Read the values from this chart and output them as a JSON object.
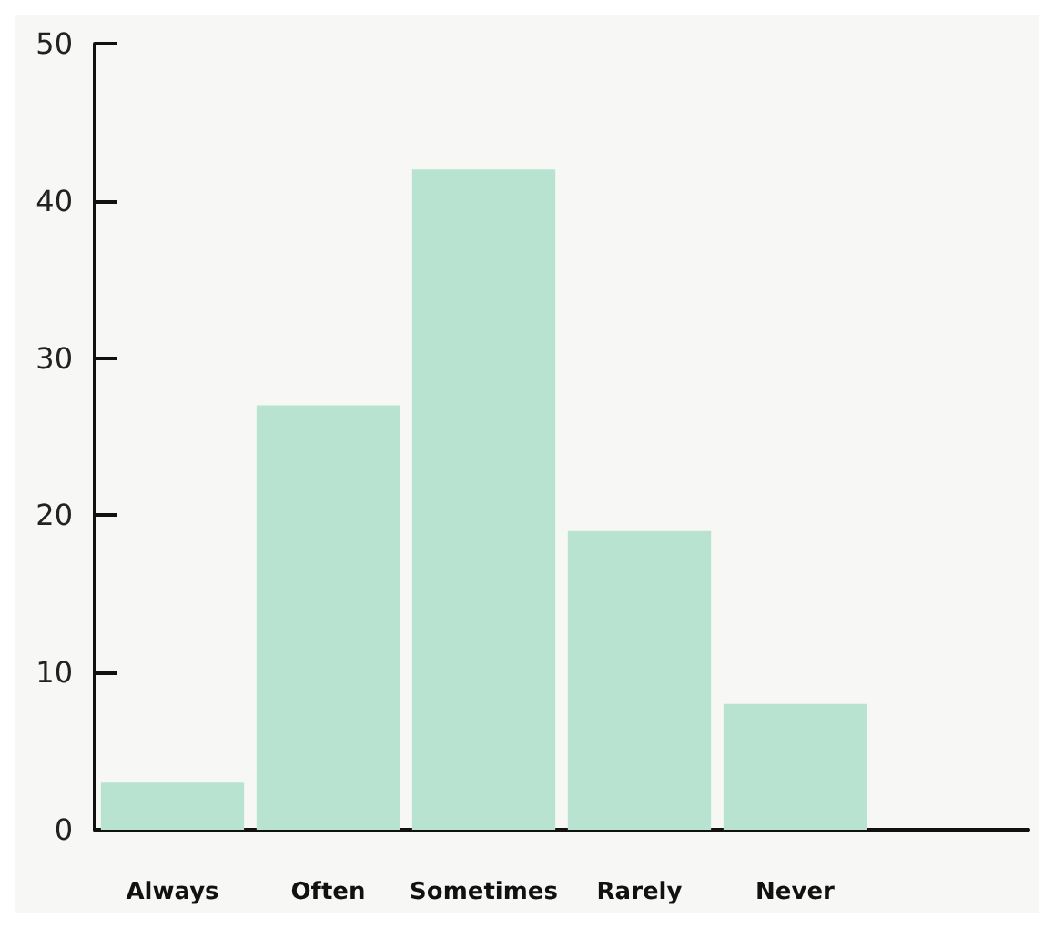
{
  "chart_data": {
    "type": "bar",
    "categories": [
      "Always",
      "Often",
      "Sometimes",
      "Rarely",
      "Never",
      null
    ],
    "values": [
      3,
      27,
      42,
      19,
      8,
      null
    ],
    "color": "#b9e3d1",
    "ylim": [
      0,
      50
    ],
    "yticks": [
      0,
      10,
      20,
      30,
      40,
      50
    ],
    "grid": false
  }
}
